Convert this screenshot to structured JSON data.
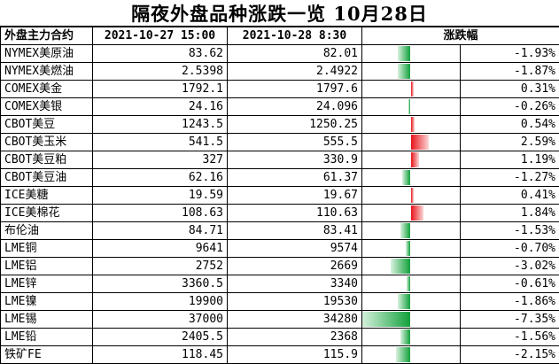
{
  "title": "隔夜外盘品种涨跌一览 10月28日",
  "headers": {
    "name": "外盘主力合约",
    "prev": "2021-10-27 15:00",
    "curr": "2021-10-28 8:30",
    "change": "涨跌幅"
  },
  "colors": {
    "up": "#e8141a",
    "down": "#12a13c"
  },
  "chart_data": {
    "type": "table",
    "title": "隔夜外盘品种涨跌一览 10月28日",
    "columns": [
      "外盘主力合约",
      "2021-10-27 15:00",
      "2021-10-28 8:30",
      "涨跌幅"
    ],
    "rows": [
      {
        "name": "NYMEX美原油",
        "prev": "83.62",
        "curr": "82.01",
        "pct_text": "-1.93%",
        "pct": -1.93
      },
      {
        "name": "NYMEX美燃油",
        "prev": "2.5398",
        "curr": "2.4922",
        "pct_text": "-1.87%",
        "pct": -1.87
      },
      {
        "name": "COMEX美金",
        "prev": "1792.1",
        "curr": "1797.6",
        "pct_text": "0.31%",
        "pct": 0.31
      },
      {
        "name": "COMEX美银",
        "prev": "24.16",
        "curr": "24.096",
        "pct_text": "-0.26%",
        "pct": -0.26
      },
      {
        "name": "CBOT美豆",
        "prev": "1243.5",
        "curr": "1250.25",
        "pct_text": "0.54%",
        "pct": 0.54
      },
      {
        "name": "CBOT美玉米",
        "prev": "541.5",
        "curr": "555.5",
        "pct_text": "2.59%",
        "pct": 2.59
      },
      {
        "name": "CBOT美豆粕",
        "prev": "327",
        "curr": "330.9",
        "pct_text": "1.19%",
        "pct": 1.19
      },
      {
        "name": "CBOT美豆油",
        "prev": "62.16",
        "curr": "61.37",
        "pct_text": "-1.27%",
        "pct": -1.27
      },
      {
        "name": "ICE美糖",
        "prev": "19.59",
        "curr": "19.67",
        "pct_text": "0.41%",
        "pct": 0.41
      },
      {
        "name": "ICE美棉花",
        "prev": "108.63",
        "curr": "110.63",
        "pct_text": "1.84%",
        "pct": 1.84
      },
      {
        "name": "布伦油",
        "prev": "84.71",
        "curr": "83.41",
        "pct_text": "-1.53%",
        "pct": -1.53
      },
      {
        "name": "LME铜",
        "prev": "9641",
        "curr": "9574",
        "pct_text": "-0.70%",
        "pct": -0.7
      },
      {
        "name": "LME铝",
        "prev": "2752",
        "curr": "2669",
        "pct_text": "-3.02%",
        "pct": -3.02
      },
      {
        "name": "LME锌",
        "prev": "3360.5",
        "curr": "3340",
        "pct_text": "-0.61%",
        "pct": -0.61
      },
      {
        "name": "LME镍",
        "prev": "19900",
        "curr": "19530",
        "pct_text": "-1.86%",
        "pct": -1.86
      },
      {
        "name": "LME锡",
        "prev": "37000",
        "curr": "34280",
        "pct_text": "-7.35%",
        "pct": -7.35
      },
      {
        "name": "LME铅",
        "prev": "2405.5",
        "curr": "2368",
        "pct_text": "-1.56%",
        "pct": -1.56
      },
      {
        "name": "铁矿FE",
        "prev": "118.45",
        "curr": "115.9",
        "pct_text": "-2.15%",
        "pct": -2.15
      }
    ]
  }
}
